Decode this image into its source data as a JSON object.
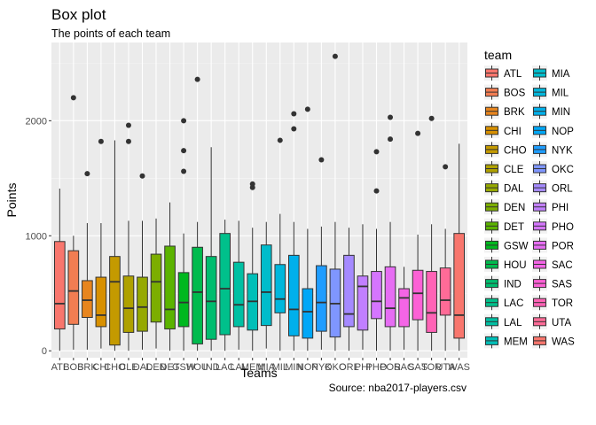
{
  "chart_data": {
    "type": "box",
    "title": "Box plot",
    "subtitle": "The points of each team",
    "xlabel": "Teams",
    "ylabel": "Points",
    "caption": "Source: nba2017-players.csv",
    "legend_title": "team",
    "ylim": [
      -60,
      2680
    ],
    "yticks": [
      0,
      1000,
      2000
    ],
    "grid": true,
    "legend_position": "right",
    "series": [
      {
        "team": "ATL",
        "color": "#F8766D",
        "whisker_low": 0,
        "q1": 190,
        "median": 410,
        "q3": 950,
        "whisker_high": 1410,
        "outliers": []
      },
      {
        "team": "BOS",
        "color": "#F27D52",
        "whisker_low": 10,
        "q1": 230,
        "median": 520,
        "q3": 870,
        "whisker_high": 1000,
        "outliers": [
          2200
        ]
      },
      {
        "team": "BRK",
        "color": "#E7851E",
        "whisker_low": 10,
        "q1": 290,
        "median": 440,
        "q3": 610,
        "whisker_high": 1110,
        "outliers": [
          1540
        ]
      },
      {
        "team": "CHI",
        "color": "#D89000",
        "whisker_low": 20,
        "q1": 210,
        "median": 310,
        "q3": 640,
        "whisker_high": 1110,
        "outliers": [
          1820
        ]
      },
      {
        "team": "CHO",
        "color": "#C49A00",
        "whisker_low": 0,
        "q1": 50,
        "median": 600,
        "q3": 820,
        "whisker_high": 1830,
        "outliers": []
      },
      {
        "team": "CLE",
        "color": "#AFA100",
        "whisker_low": 0,
        "q1": 160,
        "median": 370,
        "q3": 650,
        "whisker_high": 1130,
        "outliers": [
          1820,
          1960
        ]
      },
      {
        "team": "DAL",
        "color": "#96A900",
        "whisker_low": 10,
        "q1": 170,
        "median": 380,
        "q3": 640,
        "whisker_high": 1130,
        "outliers": [
          1520
        ]
      },
      {
        "team": "DEN",
        "color": "#7CAE00",
        "whisker_low": 20,
        "q1": 250,
        "median": 600,
        "q3": 840,
        "whisker_high": 1150,
        "outliers": []
      },
      {
        "team": "DET",
        "color": "#5BB300",
        "whisker_low": 0,
        "q1": 190,
        "median": 360,
        "q3": 910,
        "whisker_high": 1290,
        "outliers": []
      },
      {
        "team": "GSW",
        "color": "#00B81F",
        "whisker_low": 0,
        "q1": 210,
        "median": 420,
        "q3": 680,
        "whisker_high": 1020,
        "outliers": [
          1560,
          1740,
          2000
        ]
      },
      {
        "team": "HOU",
        "color": "#00BB4E",
        "whisker_low": 0,
        "q1": 60,
        "median": 510,
        "q3": 900,
        "whisker_high": 1120,
        "outliers": [
          2360
        ]
      },
      {
        "team": "IND",
        "color": "#00BD6F",
        "whisker_low": 0,
        "q1": 100,
        "median": 430,
        "q3": 820,
        "whisker_high": 1770,
        "outliers": []
      },
      {
        "team": "LAC",
        "color": "#00C08B",
        "whisker_low": 0,
        "q1": 140,
        "median": 540,
        "q3": 1020,
        "whisker_high": 1140,
        "outliers": []
      },
      {
        "team": "LAL",
        "color": "#00C0A3",
        "whisker_low": 10,
        "q1": 210,
        "median": 400,
        "q3": 770,
        "whisker_high": 1130,
        "outliers": []
      },
      {
        "team": "MEM",
        "color": "#00BFB8",
        "whisker_low": 0,
        "q1": 180,
        "median": 430,
        "q3": 670,
        "whisker_high": 1070,
        "outliers": [
          1420,
          1450
        ]
      },
      {
        "team": "MIA",
        "color": "#00BCCB",
        "whisker_low": 20,
        "q1": 220,
        "median": 510,
        "q3": 920,
        "whisker_high": 1120,
        "outliers": []
      },
      {
        "team": "MIL",
        "color": "#00B7DC",
        "whisker_low": 0,
        "q1": 330,
        "median": 450,
        "q3": 750,
        "whisker_high": 1190,
        "outliers": [
          1830
        ]
      },
      {
        "team": "MIN",
        "color": "#00B0EB",
        "whisker_low": 0,
        "q1": 130,
        "median": 360,
        "q3": 830,
        "whisker_high": 1120,
        "outliers": [
          1930,
          2060
        ]
      },
      {
        "team": "NOP",
        "color": "#00A7F7",
        "whisker_low": 0,
        "q1": 110,
        "median": 340,
        "q3": 540,
        "whisker_high": 1060,
        "outliers": [
          2100
        ]
      },
      {
        "team": "NYK",
        "color": "#1F9DFF",
        "whisker_low": 10,
        "q1": 170,
        "median": 420,
        "q3": 740,
        "whisker_high": 1080,
        "outliers": [
          1660
        ]
      },
      {
        "team": "OKC",
        "color": "#7F96FF",
        "whisker_low": 0,
        "q1": 120,
        "median": 410,
        "q3": 710,
        "whisker_high": 1120,
        "outliers": [
          2560
        ]
      },
      {
        "team": "ORL",
        "color": "#A58AFF",
        "whisker_low": 0,
        "q1": 210,
        "median": 320,
        "q3": 830,
        "whisker_high": 1070,
        "outliers": []
      },
      {
        "team": "PHI",
        "color": "#C17FFF",
        "whisker_low": 10,
        "q1": 180,
        "median": 560,
        "q3": 650,
        "whisker_high": 1100,
        "outliers": []
      },
      {
        "team": "PHO",
        "color": "#D575FE",
        "whisker_low": 0,
        "q1": 280,
        "median": 430,
        "q3": 690,
        "whisker_high": 1060,
        "outliers": [
          1390,
          1730
        ]
      },
      {
        "team": "POR",
        "color": "#E66DF3",
        "whisker_low": 0,
        "q1": 210,
        "median": 370,
        "q3": 730,
        "whisker_high": 1120,
        "outliers": [
          1840,
          2030
        ]
      },
      {
        "team": "SAC",
        "color": "#F465E6",
        "whisker_low": 10,
        "q1": 210,
        "median": 460,
        "q3": 540,
        "whisker_high": 730,
        "outliers": []
      },
      {
        "team": "SAS",
        "color": "#FC61D5",
        "whisker_low": 0,
        "q1": 270,
        "median": 500,
        "q3": 700,
        "whisker_high": 1010,
        "outliers": [
          1890
        ]
      },
      {
        "team": "TOR",
        "color": "#FF63B6",
        "whisker_low": 0,
        "q1": 160,
        "median": 330,
        "q3": 690,
        "whisker_high": 1100,
        "outliers": [
          2020
        ]
      },
      {
        "team": "UTA",
        "color": "#FF6B97",
        "whisker_low": 0,
        "q1": 310,
        "median": 440,
        "q3": 720,
        "whisker_high": 1060,
        "outliers": [
          1600
        ]
      },
      {
        "team": "WAS",
        "color": "#F8766D",
        "whisker_low": 0,
        "q1": 110,
        "median": 310,
        "q3": 1020,
        "whisker_high": 1800,
        "outliers": []
      }
    ]
  }
}
